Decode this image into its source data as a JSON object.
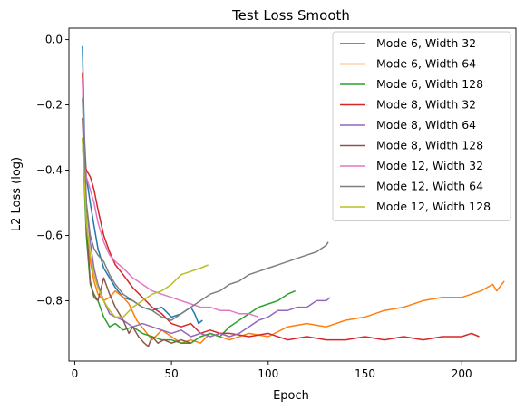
{
  "chart_data": {
    "type": "line",
    "title": "Test Loss Smooth",
    "xlabel": "Epoch",
    "ylabel": "L2 Loss (log)",
    "xlim": [
      -3,
      228
    ],
    "ylim": [
      -0.985,
      0.035
    ],
    "xticks": [
      0,
      50,
      100,
      150,
      200
    ],
    "xtick_labels": [
      "0",
      "50",
      "100",
      "150",
      "200"
    ],
    "yticks": [
      0.0,
      -0.2,
      -0.4,
      -0.6,
      -0.8
    ],
    "ytick_labels": [
      "0.0",
      "−0.2",
      "−0.4",
      "−0.6",
      "−0.8"
    ],
    "grid": false,
    "legend_position": "upper right",
    "series": [
      {
        "name": "Mode 6, Width 32",
        "color": "#1f77b4",
        "x": [
          4,
          5,
          6,
          8,
          10,
          12,
          15,
          18,
          21,
          25,
          30,
          35,
          40,
          45,
          50,
          55,
          60,
          62,
          64,
          66
        ],
        "y": [
          -0.02,
          -0.3,
          -0.42,
          -0.5,
          -0.57,
          -0.64,
          -0.7,
          -0.73,
          -0.76,
          -0.79,
          -0.8,
          -0.82,
          -0.83,
          -0.82,
          -0.85,
          -0.84,
          -0.82,
          -0.84,
          -0.87,
          -0.86
        ]
      },
      {
        "name": "Mode 6, Width 64",
        "color": "#ff7f0e",
        "x": [
          4,
          6,
          8,
          10,
          12,
          15,
          18,
          21,
          25,
          28,
          32,
          36,
          40,
          45,
          50,
          55,
          60,
          65,
          70,
          80,
          90,
          100,
          110,
          120,
          130,
          140,
          150,
          160,
          170,
          180,
          190,
          200,
          210,
          216,
          218,
          222
        ],
        "y": [
          -0.3,
          -0.55,
          -0.68,
          -0.74,
          -0.78,
          -0.8,
          -0.79,
          -0.77,
          -0.79,
          -0.81,
          -0.86,
          -0.89,
          -0.92,
          -0.89,
          -0.91,
          -0.93,
          -0.92,
          -0.93,
          -0.9,
          -0.92,
          -0.9,
          -0.91,
          -0.88,
          -0.87,
          -0.88,
          -0.86,
          -0.85,
          -0.83,
          -0.82,
          -0.8,
          -0.79,
          -0.79,
          -0.77,
          -0.75,
          -0.77,
          -0.74
        ]
      },
      {
        "name": "Mode 6, Width 128",
        "color": "#2ca02c",
        "x": [
          4,
          6,
          8,
          10,
          12,
          15,
          18,
          21,
          25,
          30,
          35,
          40,
          45,
          50,
          55,
          60,
          65,
          70,
          75,
          80,
          85,
          90,
          95,
          100,
          105,
          110,
          114
        ],
        "y": [
          -0.3,
          -0.6,
          -0.75,
          -0.78,
          -0.8,
          -0.85,
          -0.88,
          -0.87,
          -0.89,
          -0.88,
          -0.9,
          -0.91,
          -0.92,
          -0.92,
          -0.93,
          -0.93,
          -0.91,
          -0.9,
          -0.91,
          -0.88,
          -0.86,
          -0.84,
          -0.82,
          -0.81,
          -0.8,
          -0.78,
          -0.77
        ]
      },
      {
        "name": "Mode 8, Width 32",
        "color": "#d62728",
        "x": [
          4,
          5,
          6,
          8,
          10,
          12,
          15,
          18,
          21,
          25,
          30,
          35,
          40,
          45,
          50,
          55,
          60,
          65,
          70,
          75,
          80,
          90,
          100,
          110,
          120,
          130,
          140,
          150,
          160,
          170,
          180,
          190,
          200,
          205,
          209
        ],
        "y": [
          -0.1,
          -0.37,
          -0.4,
          -0.42,
          -0.46,
          -0.52,
          -0.6,
          -0.65,
          -0.69,
          -0.72,
          -0.76,
          -0.79,
          -0.82,
          -0.84,
          -0.87,
          -0.88,
          -0.87,
          -0.9,
          -0.89,
          -0.9,
          -0.9,
          -0.91,
          -0.9,
          -0.92,
          -0.91,
          -0.92,
          -0.92,
          -0.91,
          -0.92,
          -0.91,
          -0.92,
          -0.91,
          -0.91,
          -0.9,
          -0.91
        ]
      },
      {
        "name": "Mode 8, Width 64",
        "color": "#9467bd",
        "x": [
          4,
          6,
          8,
          10,
          12,
          15,
          18,
          21,
          25,
          30,
          35,
          40,
          45,
          50,
          55,
          60,
          65,
          70,
          75,
          80,
          85,
          90,
          95,
          100,
          105,
          110,
          115,
          120,
          125,
          130,
          132
        ],
        "y": [
          -0.12,
          -0.5,
          -0.62,
          -0.7,
          -0.75,
          -0.8,
          -0.84,
          -0.85,
          -0.86,
          -0.88,
          -0.87,
          -0.88,
          -0.89,
          -0.9,
          -0.89,
          -0.91,
          -0.9,
          -0.91,
          -0.9,
          -0.91,
          -0.9,
          -0.88,
          -0.86,
          -0.85,
          -0.83,
          -0.83,
          -0.82,
          -0.82,
          -0.8,
          -0.8,
          -0.79
        ]
      },
      {
        "name": "Mode 8, Width 128",
        "color": "#8c564b",
        "x": [
          4,
          6,
          8,
          10,
          12,
          15,
          18,
          21,
          25,
          28,
          30,
          33,
          36,
          38,
          40,
          43,
          46,
          50,
          55,
          60
        ],
        "y": [
          -0.24,
          -0.56,
          -0.74,
          -0.79,
          -0.8,
          -0.73,
          -0.78,
          -0.82,
          -0.86,
          -0.9,
          -0.88,
          -0.91,
          -0.93,
          -0.94,
          -0.91,
          -0.93,
          -0.92,
          -0.93,
          -0.92,
          -0.93
        ]
      },
      {
        "name": "Mode 12, Width 32",
        "color": "#e377c2",
        "x": [
          4,
          5,
          6,
          8,
          10,
          12,
          15,
          18,
          21,
          25,
          30,
          35,
          40,
          45,
          50,
          55,
          60,
          65,
          70,
          75,
          80,
          85,
          90,
          95
        ],
        "y": [
          -0.12,
          -0.38,
          -0.42,
          -0.46,
          -0.5,
          -0.56,
          -0.62,
          -0.66,
          -0.68,
          -0.7,
          -0.73,
          -0.75,
          -0.77,
          -0.78,
          -0.79,
          -0.8,
          -0.81,
          -0.82,
          -0.82,
          -0.83,
          -0.83,
          -0.84,
          -0.84,
          -0.85
        ]
      },
      {
        "name": "Mode 12, Width 64",
        "color": "#7f7f7f",
        "x": [
          4,
          6,
          8,
          10,
          12,
          15,
          18,
          21,
          25,
          30,
          35,
          40,
          45,
          50,
          55,
          60,
          65,
          70,
          75,
          80,
          85,
          90,
          95,
          100,
          105,
          110,
          115,
          120,
          125,
          130,
          131
        ],
        "y": [
          -0.18,
          -0.5,
          -0.6,
          -0.64,
          -0.66,
          -0.68,
          -0.72,
          -0.75,
          -0.78,
          -0.8,
          -0.82,
          -0.83,
          -0.85,
          -0.86,
          -0.84,
          -0.82,
          -0.8,
          -0.78,
          -0.77,
          -0.75,
          -0.74,
          -0.72,
          -0.71,
          -0.7,
          -0.69,
          -0.68,
          -0.67,
          -0.66,
          -0.65,
          -0.63,
          -0.62
        ]
      },
      {
        "name": "Mode 12, Width 128",
        "color": "#bcbd22",
        "x": [
          4,
          6,
          8,
          10,
          12,
          15,
          18,
          21,
          25,
          30,
          35,
          40,
          45,
          50,
          55,
          60,
          65,
          69
        ],
        "y": [
          -0.3,
          -0.56,
          -0.66,
          -0.72,
          -0.76,
          -0.8,
          -0.83,
          -0.85,
          -0.85,
          -0.82,
          -0.8,
          -0.78,
          -0.77,
          -0.75,
          -0.72,
          -0.71,
          -0.7,
          -0.69
        ]
      }
    ]
  }
}
